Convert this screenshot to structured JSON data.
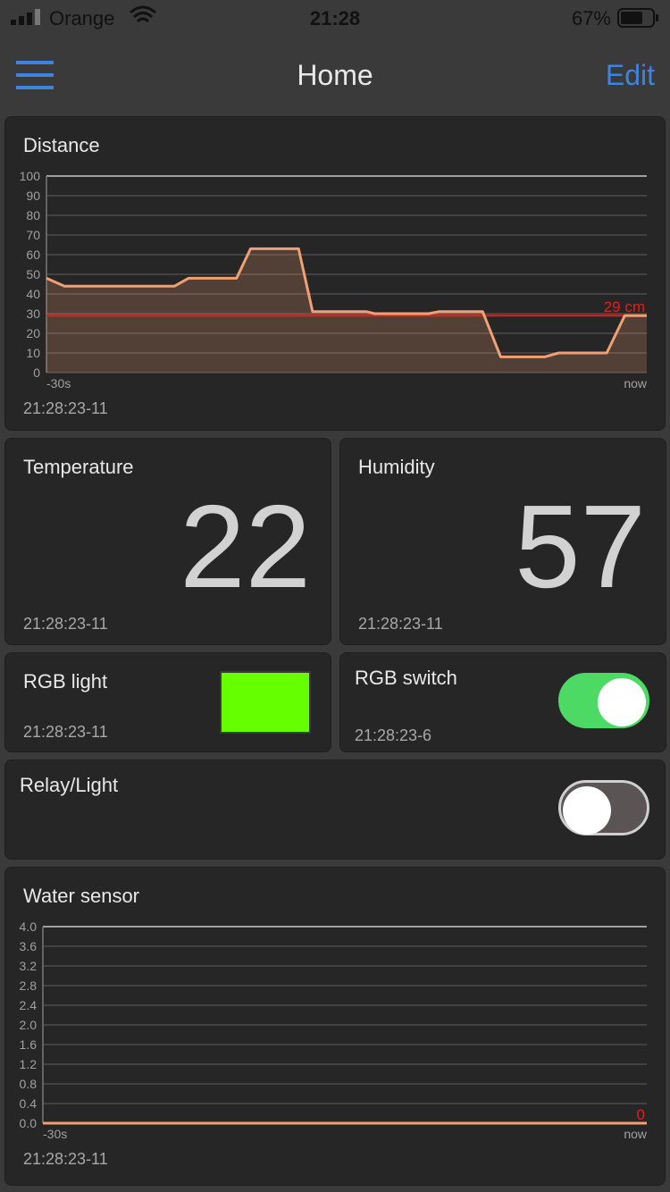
{
  "status_bar": {
    "carrier": "Orange",
    "time": "21:28",
    "battery": "67%"
  },
  "nav": {
    "title": "Home",
    "edit": "Edit"
  },
  "widgets": {
    "distance": {
      "title": "Distance",
      "timestamp": "21:28:23-11",
      "chart": {
        "type": "line",
        "x": [
          -30,
          -29.1,
          -23.6,
          -22.9,
          -20.5,
          -19.8,
          -17.4,
          -16.7,
          -14.0,
          -13.6,
          -10.9,
          -10.4,
          -8.2,
          -7.3,
          -5.1,
          -4.4,
          -2.0,
          -1.1,
          0
        ],
        "values": [
          48,
          44,
          44,
          48,
          48,
          63,
          63,
          31,
          31,
          30,
          30,
          31,
          31,
          8,
          8,
          10,
          10,
          29,
          29
        ],
        "color": "#f0a072",
        "fill": "rgba(240,160,114,0.22)",
        "xlim": [
          -30,
          0
        ],
        "xticks": [
          {
            "value": -30,
            "label": "-30s"
          },
          {
            "value": 0,
            "label": "now"
          }
        ],
        "ylim": [
          0,
          100
        ],
        "yticks": [
          0,
          10,
          20,
          30,
          40,
          50,
          60,
          70,
          80,
          90,
          100
        ],
        "grid": true,
        "reference": {
          "value": 29,
          "label": "29 cm",
          "color": "#e0201c"
        }
      }
    },
    "temperature": {
      "title": "Temperature",
      "value": 22,
      "timestamp": "21:28:23-11"
    },
    "humidity": {
      "title": "Humidity",
      "value": 57,
      "timestamp": "21:28:23-11"
    },
    "rgb_light": {
      "title": "RGB light",
      "color": "#66ff00",
      "timestamp": "21:28:23-11"
    },
    "rgb_switch": {
      "title": "RGB switch",
      "on": true,
      "timestamp": "21:28:23-6"
    },
    "relay": {
      "title": "Relay/Light",
      "on": false
    },
    "water_sensor": {
      "title": "Water sensor",
      "timestamp": "21:28:23-11",
      "chart": {
        "type": "line",
        "x": [
          -30,
          0
        ],
        "values": [
          0,
          0
        ],
        "color": "#f0a072",
        "fill": "rgba(240,160,114,0.22)",
        "xlim": [
          -30,
          0
        ],
        "xticks": [
          {
            "value": -30,
            "label": "-30s"
          },
          {
            "value": 0,
            "label": "now"
          }
        ],
        "ylim": [
          0,
          4
        ],
        "yticks": [
          {
            "value": 0,
            "label": "0.0"
          },
          0.4,
          0.8,
          1.2,
          1.6,
          {
            "value": 2,
            "label": "2.0"
          },
          2.4,
          2.8,
          3.2,
          3.6,
          {
            "value": 4,
            "label": "4.0"
          }
        ],
        "grid": true,
        "reference": {
          "value": 0,
          "label": "0",
          "color": "#e0201c"
        }
      }
    }
  }
}
